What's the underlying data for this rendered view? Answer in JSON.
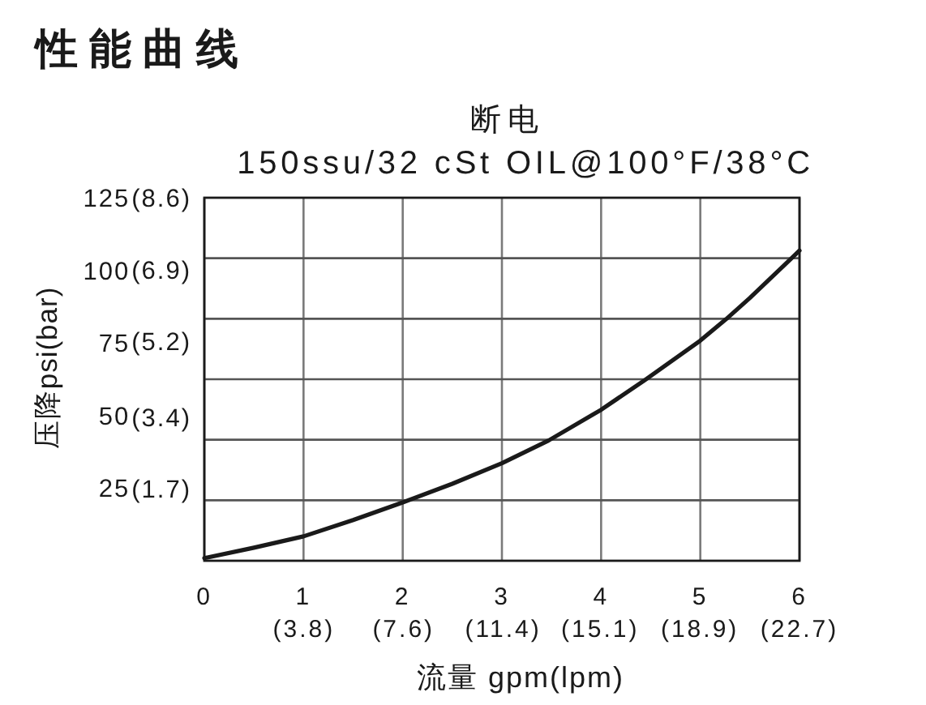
{
  "chart_data": {
    "type": "line",
    "title": "性能曲线",
    "subtitle": "断电",
    "annotations": [
      "150ssu/32 cSt OIL@100°F/38°C"
    ],
    "xlabel": "流量 gpm(lpm)",
    "ylabel": "压降psi(bar)",
    "x": [
      0,
      0.5,
      1,
      1.5,
      2,
      2.5,
      3,
      3.47,
      4,
      4.44,
      5,
      5.26,
      5.5,
      5.92,
      6
    ],
    "series": [
      {
        "color": "#1a1a1a",
        "values": [
          0.9,
          4.5,
          8.4,
          14,
          20.1,
          26.5,
          33.6,
          41.4,
          52,
          62.2,
          75.8,
          83.2,
          90.5,
          104.2,
          106.8
        ]
      }
    ],
    "xlim": [
      0,
      6
    ],
    "ylim": [
      0,
      125
    ],
    "xticks": [
      0,
      1,
      2,
      3,
      4,
      5,
      6
    ],
    "x2lim": [
      0,
      22.7
    ],
    "x2ticks": [
      {
        "value": 3.8,
        "label": "(3.8)"
      },
      {
        "value": 7.6,
        "label": "(7.6)"
      },
      {
        "value": 11.4,
        "label": "(11.4)"
      },
      {
        "value": 15.1,
        "label": "(15.1)"
      },
      {
        "value": 18.9,
        "label": "(18.9)"
      },
      {
        "value": 22.7,
        "label": "(22.7)"
      }
    ],
    "yticks": [
      25,
      50,
      75,
      100,
      125,
      {
        "value": 20.83,
        "label": null
      },
      {
        "value": 41.67,
        "label": null
      },
      {
        "value": 62.5,
        "label": null
      },
      {
        "value": 83.33,
        "label": null
      },
      {
        "value": 104.17,
        "label": null
      }
    ],
    "y2lim": [
      0,
      8.6
    ],
    "y2ticks": [
      {
        "value": 1.7,
        "label": "(1.7)"
      },
      {
        "value": 3.4,
        "label": "(3.4)"
      },
      {
        "value": 5.2,
        "label": "(5.2)"
      },
      {
        "value": 6.9,
        "label": "(6.9)"
      },
      {
        "value": 8.6,
        "label": "(8.6)"
      }
    ],
    "grid": true
  }
}
